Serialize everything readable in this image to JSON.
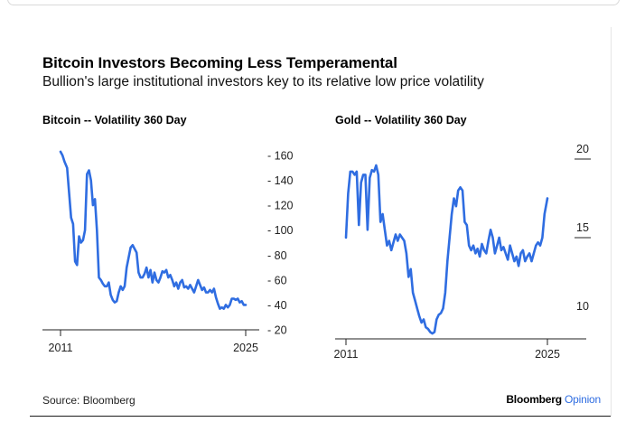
{
  "title": "Bitcoin Investors Becoming Less Temperamental",
  "subtitle": "Bullion's large institutional investors key to its relative low price volatility",
  "source": "Source: Bloomberg",
  "brand": {
    "name": "Bloomberg",
    "suffix": "Opinion"
  },
  "colors": {
    "line": "#2f6de1",
    "brand_accent": "#2f6de1"
  },
  "chart_data": [
    {
      "type": "line",
      "title": "Bitcoin -- Volatility 360 Day",
      "xlabel": "",
      "ylabel": "",
      "xlim": [
        2011,
        2025
      ],
      "ylim": [
        20,
        170
      ],
      "x_tick_labels": [
        "2011",
        "2025"
      ],
      "y_ticks": [
        20,
        40,
        60,
        80,
        100,
        120,
        140,
        160
      ],
      "y_tick_labels": [
        "- 20",
        "- 40",
        "- 60",
        "- 80",
        "- 100",
        "- 120",
        "- 140",
        "- 160"
      ],
      "series": [
        {
          "name": "Bitcoin",
          "x": [
            2011.0,
            2011.15,
            2011.3,
            2011.5,
            2011.65,
            2011.8,
            2011.95,
            2012.1,
            2012.25,
            2012.4,
            2012.55,
            2012.7,
            2012.85,
            2013.0,
            2013.15,
            2013.3,
            2013.45,
            2013.6,
            2013.75,
            2013.9,
            2014.05,
            2014.2,
            2014.35,
            2014.5,
            2014.65,
            2014.8,
            2014.95,
            2015.1,
            2015.25,
            2015.4,
            2015.55,
            2015.7,
            2015.85,
            2016.0,
            2016.15,
            2016.3,
            2016.45,
            2016.6,
            2016.75,
            2016.9,
            2017.05,
            2017.2,
            2017.35,
            2017.5,
            2017.65,
            2017.8,
            2017.95,
            2018.1,
            2018.25,
            2018.4,
            2018.55,
            2018.7,
            2018.85,
            2019.0,
            2019.15,
            2019.3,
            2019.45,
            2019.6,
            2019.75,
            2019.9,
            2020.05,
            2020.2,
            2020.35,
            2020.5,
            2020.65,
            2020.8,
            2020.95,
            2021.1,
            2021.25,
            2021.4,
            2021.55,
            2021.7,
            2021.85,
            2022.0,
            2022.15,
            2022.3,
            2022.45,
            2022.6,
            2022.75,
            2022.9,
            2023.05,
            2023.2,
            2023.35,
            2023.5,
            2023.65,
            2023.8,
            2023.95,
            2024.1,
            2024.25,
            2024.4,
            2024.55,
            2024.7,
            2024.85,
            2025.0
          ],
          "values": [
            163,
            160,
            155,
            150,
            130,
            110,
            105,
            75,
            72,
            95,
            90,
            92,
            100,
            145,
            148,
            140,
            120,
            125,
            100,
            62,
            60,
            57,
            55,
            55,
            58,
            48,
            44,
            42,
            43,
            50,
            55,
            52,
            55,
            70,
            78,
            86,
            88,
            85,
            82,
            66,
            62,
            62,
            65,
            70,
            62,
            68,
            58,
            66,
            60,
            58,
            62,
            67,
            66,
            68,
            62,
            64,
            60,
            55,
            58,
            53,
            58,
            60,
            54,
            55,
            53,
            56,
            53,
            50,
            55,
            60,
            56,
            52,
            54,
            50,
            50,
            52,
            50,
            53,
            46,
            41,
            37,
            38,
            37,
            40,
            38,
            40,
            45,
            45,
            44,
            45,
            42,
            43,
            40,
            40
          ]
        }
      ]
    },
    {
      "type": "line",
      "title": "Gold -- Volatility 360 Day",
      "xlabel": "",
      "ylabel": "",
      "xlim": [
        2011,
        2025
      ],
      "ylim": [
        8.5,
        20.8
      ],
      "x_tick_labels": [
        "2011",
        "2025"
      ],
      "y_ticks": [
        10,
        15,
        20
      ],
      "y_tick_labels": [
        "10",
        "15",
        "20"
      ],
      "series": [
        {
          "name": "Gold",
          "x": [
            2011.0,
            2011.15,
            2011.3,
            2011.45,
            2011.6,
            2011.75,
            2011.9,
            2012.05,
            2012.2,
            2012.35,
            2012.5,
            2012.65,
            2012.8,
            2012.95,
            2013.1,
            2013.25,
            2013.4,
            2013.55,
            2013.7,
            2013.85,
            2014.0,
            2014.15,
            2014.3,
            2014.45,
            2014.6,
            2014.75,
            2014.9,
            2015.05,
            2015.2,
            2015.35,
            2015.5,
            2015.65,
            2015.8,
            2015.95,
            2016.1,
            2016.25,
            2016.4,
            2016.55,
            2016.7,
            2016.85,
            2017.0,
            2017.15,
            2017.3,
            2017.45,
            2017.6,
            2017.75,
            2017.9,
            2018.05,
            2018.2,
            2018.35,
            2018.5,
            2018.65,
            2018.8,
            2018.95,
            2019.1,
            2019.25,
            2019.4,
            2019.55,
            2019.7,
            2019.85,
            2020.0,
            2020.15,
            2020.3,
            2020.45,
            2020.6,
            2020.75,
            2020.9,
            2021.05,
            2021.2,
            2021.35,
            2021.5,
            2021.65,
            2021.8,
            2021.95,
            2022.1,
            2022.25,
            2022.4,
            2022.55,
            2022.7,
            2022.85,
            2023.0,
            2023.15,
            2023.3,
            2023.45,
            2023.6,
            2023.75,
            2023.9,
            2024.05,
            2024.2,
            2024.35,
            2024.5,
            2024.65,
            2024.8,
            2025.0
          ],
          "values": [
            15.0,
            17.8,
            19.2,
            19.2,
            19.0,
            19.2,
            15.8,
            18.5,
            19.0,
            19.0,
            15.5,
            18.8,
            19.3,
            19.2,
            19.6,
            19.0,
            16.0,
            16.5,
            15.5,
            14.5,
            14.8,
            14.2,
            14.7,
            15.2,
            14.8,
            15.2,
            15.0,
            14.8,
            14.0,
            12.5,
            13.0,
            11.5,
            11.0,
            10.5,
            10.0,
            9.6,
            9.8,
            9.3,
            9.2,
            9.0,
            8.9,
            9.0,
            9.8,
            10.1,
            10.2,
            10.5,
            11.5,
            13.5,
            15.0,
            16.5,
            17.5,
            17.0,
            18.0,
            18.2,
            18.0,
            16.0,
            15.8,
            14.5,
            14.2,
            14.5,
            14.0,
            14.3,
            13.8,
            14.6,
            14.2,
            14.0,
            14.8,
            15.5,
            15.0,
            14.0,
            14.5,
            15.0,
            14.2,
            14.4,
            14.0,
            13.6,
            14.5,
            14.0,
            13.5,
            13.8,
            13.2,
            14.0,
            14.2,
            13.5,
            13.8,
            14.0,
            13.5,
            14.0,
            14.5,
            14.7,
            14.5,
            15.0,
            16.5,
            17.5
          ]
        }
      ]
    }
  ]
}
